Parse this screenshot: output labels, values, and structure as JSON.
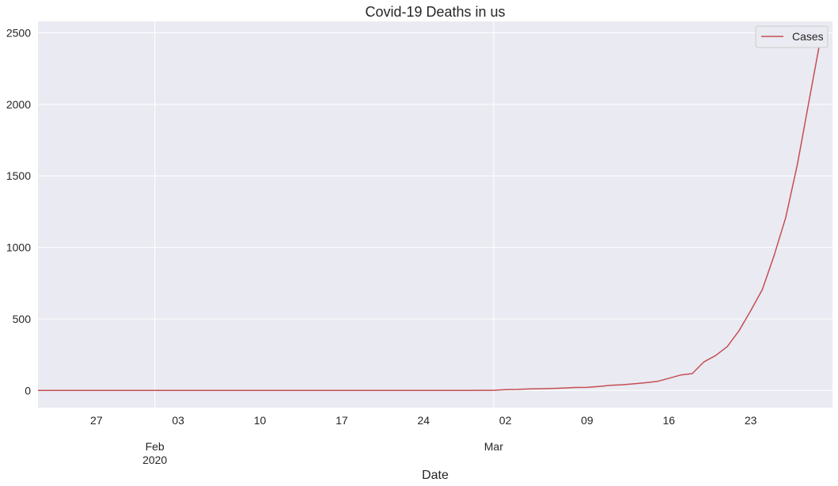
{
  "chart_data": {
    "type": "line",
    "title": "Covid-19 Deaths in us",
    "xlabel": "Date",
    "ylabel": "",
    "x_start": "2020-01-22",
    "x_end": "2020-03-30",
    "ylim": [
      -120,
      2580
    ],
    "grid": true,
    "legend_position": "top-right",
    "y_ticks": [
      0,
      500,
      1000,
      1500,
      2000,
      2500
    ],
    "x_minor_ticks": [
      {
        "date": "2020-01-27",
        "label": "27"
      },
      {
        "date": "2020-02-03",
        "label": "03"
      },
      {
        "date": "2020-02-10",
        "label": "10"
      },
      {
        "date": "2020-02-17",
        "label": "17"
      },
      {
        "date": "2020-02-24",
        "label": "24"
      },
      {
        "date": "2020-03-02",
        "label": "02"
      },
      {
        "date": "2020-03-09",
        "label": "09"
      },
      {
        "date": "2020-03-16",
        "label": "16"
      },
      {
        "date": "2020-03-23",
        "label": "23"
      }
    ],
    "x_major_ticks": [
      {
        "date": "2020-02-01",
        "label": "Feb",
        "sublabel": "2020"
      },
      {
        "date": "2020-03-01",
        "label": "Mar",
        "sublabel": ""
      }
    ],
    "series": [
      {
        "name": "Cases",
        "color": "#c44e52",
        "points": [
          [
            "2020-01-22",
            0
          ],
          [
            "2020-02-01",
            0
          ],
          [
            "2020-02-10",
            0
          ],
          [
            "2020-02-20",
            0
          ],
          [
            "2020-02-28",
            0
          ],
          [
            "2020-02-29",
            1
          ],
          [
            "2020-03-01",
            1
          ],
          [
            "2020-03-02",
            6
          ],
          [
            "2020-03-03",
            7
          ],
          [
            "2020-03-04",
            11
          ],
          [
            "2020-03-05",
            12
          ],
          [
            "2020-03-06",
            14
          ],
          [
            "2020-03-07",
            17
          ],
          [
            "2020-03-08",
            21
          ],
          [
            "2020-03-09",
            22
          ],
          [
            "2020-03-10",
            28
          ],
          [
            "2020-03-11",
            36
          ],
          [
            "2020-03-12",
            40
          ],
          [
            "2020-03-13",
            47
          ],
          [
            "2020-03-14",
            54
          ],
          [
            "2020-03-15",
            63
          ],
          [
            "2020-03-16",
            85
          ],
          [
            "2020-03-17",
            108
          ],
          [
            "2020-03-18",
            118
          ],
          [
            "2020-03-19",
            200
          ],
          [
            "2020-03-20",
            244
          ],
          [
            "2020-03-21",
            307
          ],
          [
            "2020-03-22",
            417
          ],
          [
            "2020-03-23",
            557
          ],
          [
            "2020-03-24",
            706
          ],
          [
            "2020-03-25",
            942
          ],
          [
            "2020-03-26",
            1209
          ],
          [
            "2020-03-27",
            1581
          ],
          [
            "2020-03-28",
            2026
          ],
          [
            "2020-03-29",
            2467
          ]
        ]
      }
    ]
  }
}
